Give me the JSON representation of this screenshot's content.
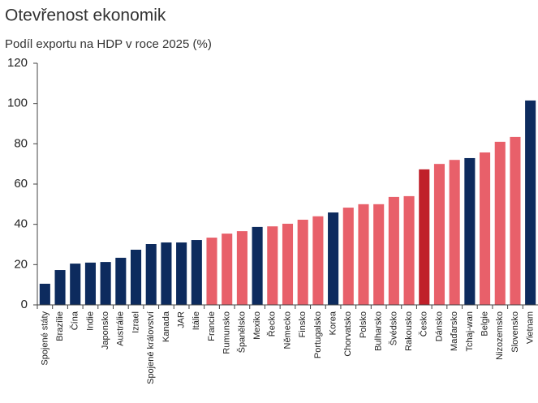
{
  "chart_data": {
    "type": "bar",
    "title": "Otevřenost ekonomik",
    "subtitle": "Podíl exportu na HDP v roce 2025 (%)",
    "categories": [
      "Spojené státy",
      "Brazílie",
      "Čína",
      "Indie",
      "Japonsko",
      "Austrálie",
      "Izrael",
      "Spojené království",
      "Kanada",
      "JAR",
      "Itálie",
      "Francie",
      "Rumunsko",
      "Španělsko",
      "Mexiko",
      "Řecko",
      "Německo",
      "Finsko",
      "Portugalsko",
      "Korea",
      "Chorvatsko",
      "Polsko",
      "Bulharsko",
      "Švédsko",
      "Rakousko",
      "Česko",
      "Dánsko",
      "Maďarsko",
      "Tchaj-wan",
      "Belgie",
      "Nizozemsko",
      "Slovensko",
      "Vietnam"
    ],
    "values": [
      10.5,
      17.3,
      20.5,
      21,
      21.3,
      23.4,
      27.4,
      30.2,
      31,
      31,
      32.2,
      33.4,
      35.4,
      36.6,
      38.7,
      39,
      40.3,
      42.3,
      44,
      45.9,
      48.3,
      50,
      50,
      53.6,
      54,
      67.3,
      70,
      72,
      72.9,
      75.7,
      81,
      83.4,
      101.5
    ],
    "colors": [
      "#0d2b5e",
      "#0d2b5e",
      "#0d2b5e",
      "#0d2b5e",
      "#0d2b5e",
      "#0d2b5e",
      "#0d2b5e",
      "#0d2b5e",
      "#0d2b5e",
      "#0d2b5e",
      "#0d2b5e",
      "#e8606a",
      "#e8606a",
      "#e8606a",
      "#0d2b5e",
      "#e8606a",
      "#e8606a",
      "#e8606a",
      "#e8606a",
      "#0d2b5e",
      "#e8606a",
      "#e8606a",
      "#e8606a",
      "#e8606a",
      "#e8606a",
      "#c0202a",
      "#e8606a",
      "#e8606a",
      "#0d2b5e",
      "#e8606a",
      "#e8606a",
      "#e8606a",
      "#0d2b5e"
    ],
    "ylim": [
      0,
      120
    ],
    "yticks": [
      0,
      20,
      40,
      60,
      80,
      100,
      120
    ],
    "grid": false
  }
}
